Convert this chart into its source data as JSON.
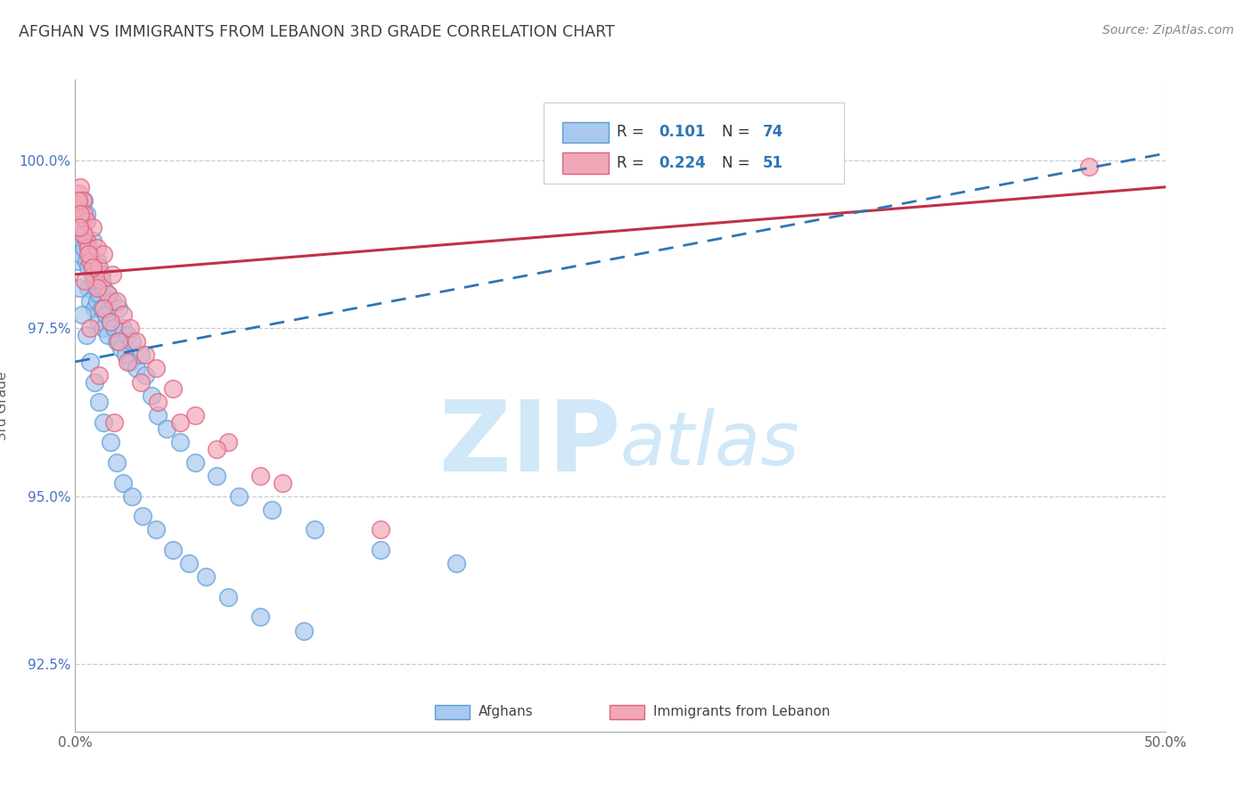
{
  "title": "AFGHAN VS IMMIGRANTS FROM LEBANON 3RD GRADE CORRELATION CHART",
  "source": "Source: ZipAtlas.com",
  "ylabel": "3rd Grade",
  "xlim": [
    0.0,
    50.0
  ],
  "ylim": [
    91.5,
    101.2
  ],
  "xticks": [
    0.0,
    10.0,
    20.0,
    30.0,
    40.0,
    50.0
  ],
  "xticklabels": [
    "0.0%",
    "",
    "",
    "",
    "",
    "50.0%"
  ],
  "yticks": [
    92.5,
    95.0,
    97.5,
    100.0
  ],
  "yticklabels": [
    "92.5%",
    "95.0%",
    "97.5%",
    "100.0%"
  ],
  "blue_color": "#A8C8EE",
  "pink_color": "#F0A8B8",
  "blue_edge_color": "#5B9BD5",
  "pink_edge_color": "#E06080",
  "blue_line_color": "#2E75B6",
  "pink_line_color": "#C0304A",
  "title_color": "#404040",
  "axis_color": "#606060",
  "grid_color": "#CACAD8",
  "yaxis_tick_color": "#4472C4",
  "watermark_color": "#D0E8F8",
  "background_color": "#FFFFFF",
  "blue_scatter_x": [
    0.15,
    0.15,
    0.2,
    0.25,
    0.25,
    0.3,
    0.35,
    0.4,
    0.4,
    0.5,
    0.5,
    0.6,
    0.6,
    0.7,
    0.7,
    0.8,
    0.8,
    0.9,
    0.9,
    1.0,
    1.0,
    1.1,
    1.1,
    1.2,
    1.2,
    1.3,
    1.3,
    1.4,
    1.5,
    1.5,
    1.6,
    1.7,
    1.8,
    1.9,
    2.0,
    2.1,
    2.2,
    2.3,
    2.4,
    2.5,
    2.6,
    2.8,
    3.0,
    3.2,
    3.5,
    3.8,
    4.2,
    4.8,
    5.5,
    6.5,
    7.5,
    9.0,
    11.0,
    14.0,
    17.5,
    0.2,
    0.3,
    0.5,
    0.7,
    0.9,
    1.1,
    1.3,
    1.6,
    1.9,
    2.2,
    2.6,
    3.1,
    3.7,
    4.5,
    5.2,
    6.0,
    7.0,
    8.5,
    10.5
  ],
  "blue_scatter_y": [
    98.5,
    99.0,
    98.8,
    99.3,
    98.6,
    98.9,
    99.1,
    98.7,
    99.4,
    98.5,
    99.2,
    98.4,
    98.1,
    97.9,
    98.6,
    98.3,
    98.8,
    97.8,
    98.2,
    97.9,
    98.5,
    97.6,
    98.0,
    97.8,
    98.3,
    97.5,
    98.1,
    97.7,
    97.4,
    98.0,
    97.6,
    97.9,
    97.5,
    97.3,
    97.8,
    97.2,
    97.5,
    97.1,
    97.4,
    97.0,
    97.3,
    96.9,
    97.1,
    96.8,
    96.5,
    96.2,
    96.0,
    95.8,
    95.5,
    95.3,
    95.0,
    94.8,
    94.5,
    94.2,
    94.0,
    98.1,
    97.7,
    97.4,
    97.0,
    96.7,
    96.4,
    96.1,
    95.8,
    95.5,
    95.2,
    95.0,
    94.7,
    94.5,
    94.2,
    94.0,
    93.8,
    93.5,
    93.2,
    93.0
  ],
  "pink_scatter_x": [
    0.1,
    0.15,
    0.2,
    0.25,
    0.3,
    0.35,
    0.4,
    0.5,
    0.5,
    0.6,
    0.7,
    0.8,
    0.9,
    1.0,
    1.1,
    1.2,
    1.3,
    1.5,
    1.7,
    1.9,
    2.2,
    2.5,
    2.8,
    3.2,
    3.7,
    4.5,
    5.5,
    7.0,
    9.5,
    14.0,
    0.15,
    0.25,
    0.4,
    0.6,
    0.8,
    1.0,
    1.3,
    1.6,
    2.0,
    2.4,
    3.0,
    3.8,
    4.8,
    6.5,
    8.5,
    46.5,
    0.2,
    0.45,
    0.7,
    1.1,
    1.8
  ],
  "pink_scatter_y": [
    99.3,
    99.5,
    99.1,
    99.6,
    99.0,
    99.4,
    99.2,
    98.8,
    99.1,
    98.7,
    98.5,
    99.0,
    98.3,
    98.7,
    98.4,
    98.2,
    98.6,
    98.0,
    98.3,
    97.9,
    97.7,
    97.5,
    97.3,
    97.1,
    96.9,
    96.6,
    96.2,
    95.8,
    95.2,
    94.5,
    99.4,
    99.2,
    98.9,
    98.6,
    98.4,
    98.1,
    97.8,
    97.6,
    97.3,
    97.0,
    96.7,
    96.4,
    96.1,
    95.7,
    95.3,
    99.9,
    99.0,
    98.2,
    97.5,
    96.8,
    96.1
  ],
  "blue_trendline_x": [
    0.0,
    50.0
  ],
  "blue_trendline_y": [
    97.0,
    100.1
  ],
  "pink_trendline_x": [
    0.0,
    50.0
  ],
  "pink_trendline_y": [
    98.3,
    99.6
  ]
}
